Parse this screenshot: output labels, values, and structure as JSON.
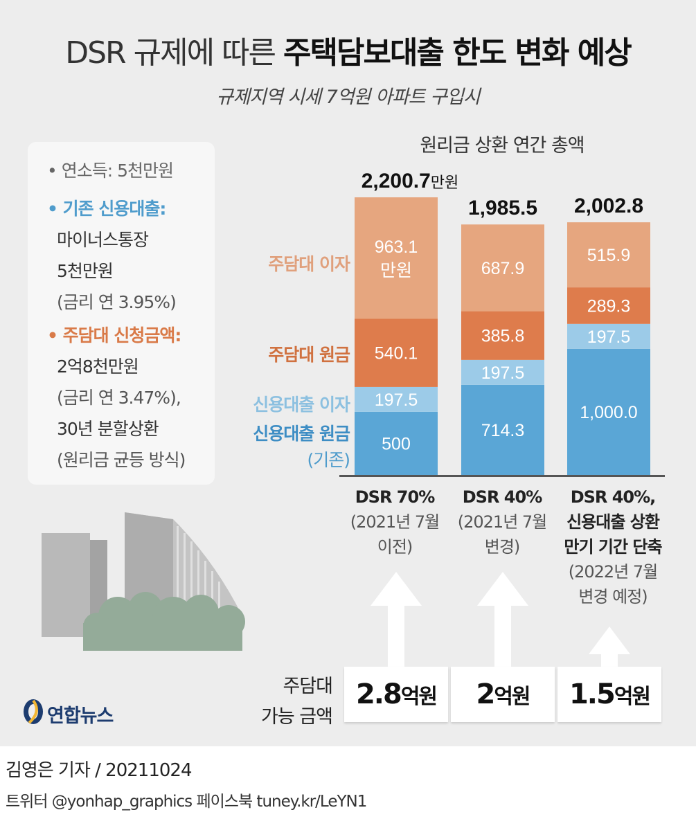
{
  "title": {
    "light": "DSR 규제에 따른",
    "bold": "주택담보대출 한도 변화 예상"
  },
  "subtitle": "규제지역 시세 7억원 아파트 구입시",
  "conditions": {
    "income": "• 연소득: 5천만원",
    "credit_head": "• 기존 신용대출:",
    "credit_1": "마이너스통장",
    "credit_2": "5천만원",
    "credit_3": "(금리 연 3.95%)",
    "mortgage_head": "• 주담대 신청금액:",
    "mortgage_1": "2억8천만원",
    "mortgage_2": "(금리 연 3.47%),",
    "mortgage_3": "30년 분할상환",
    "mortgage_4": "(원리금 균등 방식)"
  },
  "legend": {
    "mortgage_interest": "주담대 이자",
    "mortgage_principal": "주담대 원금",
    "credit_interest": "신용대출 이자",
    "credit_principal": "신용대출 원금",
    "credit_principal_note": "(기존)"
  },
  "chart_data": {
    "type": "bar",
    "stacked": true,
    "title": "원리금 상환 연간 총액",
    "unit": "만원",
    "categories": [
      "DSR 70%",
      "DSR 40%",
      "DSR 40%, 신용대출 상환 만기 기간 단축"
    ],
    "totals": [
      "2,200.7",
      "1,985.5",
      "2,002.8"
    ],
    "total_values": [
      2200.7,
      1985.5,
      2002.8
    ],
    "series": [
      {
        "name": "신용대출 원금",
        "values": [
          500,
          714.3,
          1000.0
        ],
        "labels": [
          "500",
          "714.3",
          "1,000.0"
        ],
        "color": "#5aa6d6"
      },
      {
        "name": "신용대출 이자",
        "values": [
          197.5,
          197.5,
          197.5
        ],
        "labels": [
          "197.5",
          "197.5",
          "197.5"
        ],
        "color": "#9ccbe8"
      },
      {
        "name": "주담대 원금",
        "values": [
          540.1,
          385.8,
          289.3
        ],
        "labels": [
          "540.1",
          "385.8",
          "289.3"
        ],
        "color": "#de7c4c"
      },
      {
        "name": "주담대 이자",
        "values": [
          963.1,
          687.9,
          515.9
        ],
        "labels": [
          "963.1",
          "687.9",
          "515.9"
        ],
        "color": "#e6a67f"
      }
    ],
    "first_interest_unit": "만원"
  },
  "axis": {
    "c1_main": "DSR 70%",
    "c1_note1": "(2021년 7월",
    "c1_note2": "이전)",
    "c2_main": "DSR 40%",
    "c2_note1": "(2021년 7월",
    "c2_note2": "변경)",
    "c3_main1": "DSR 40%,",
    "c3_main2": "신용대출 상환",
    "c3_main3": "만기 기간 단축",
    "c3_note1": "(2022년 7월",
    "c3_note2": "변경 예정)"
  },
  "amount": {
    "label_1": "주담대",
    "label_2": "가능 금액",
    "values": [
      {
        "num": "2.8",
        "unit": "억원"
      },
      {
        "num": "2",
        "unit": "억원"
      },
      {
        "num": "1.5",
        "unit": "억원"
      }
    ]
  },
  "logo": "연합뉴스",
  "footer": {
    "reporter": "김영은 기자 / 20211024",
    "social": "트위터 @yonhap_graphics  페이스북 tuney.kr/LeYN1"
  },
  "colors": {
    "credit_principal": "#5aa6d6",
    "credit_interest": "#9ccbe8",
    "mortgage_principal": "#de7c4c",
    "mortgage_interest": "#e6a67f",
    "background": "#ededed"
  }
}
